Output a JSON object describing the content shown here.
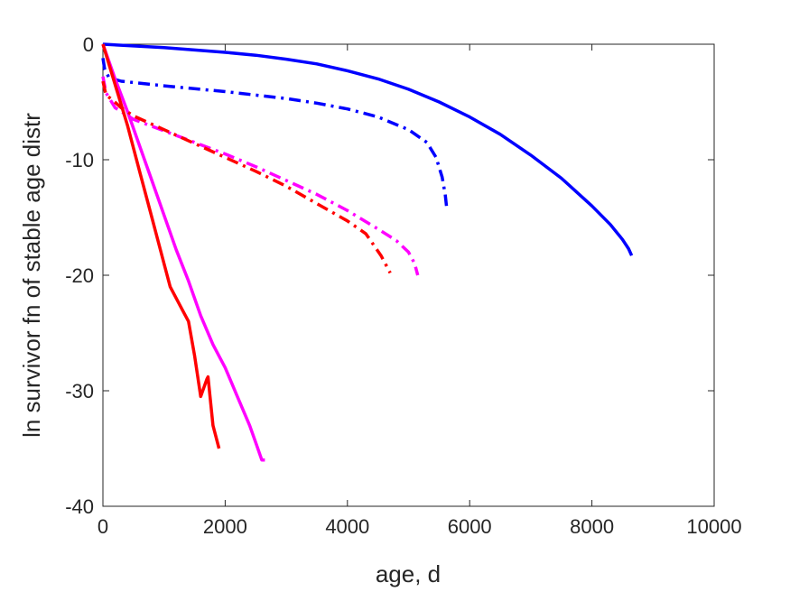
{
  "chart_data": {
    "type": "line",
    "title": "",
    "xlabel": "age, d",
    "ylabel": "ln survivor fn of stable age distr",
    "xlim": [
      0,
      10000
    ],
    "ylim": [
      -40,
      0
    ],
    "xticks": [
      0,
      2000,
      4000,
      6000,
      8000,
      10000
    ],
    "yticks": [
      0,
      -10,
      -20,
      -30,
      -40
    ],
    "xtick_labels": [
      "0",
      "2000",
      "4000",
      "6000",
      "8000",
      "10000"
    ],
    "ytick_labels": [
      "0",
      "-10",
      "-20",
      "-30",
      "-40"
    ],
    "grid": false,
    "legend": "none",
    "series": [
      {
        "color": "#0000ff",
        "style": "solid",
        "x": [
          0,
          500,
          1000,
          1500,
          2000,
          2500,
          3000,
          3500,
          4000,
          4500,
          5000,
          5500,
          6000,
          6500,
          7000,
          7500,
          8000,
          8300,
          8500,
          8600,
          8650
        ],
        "y": [
          0,
          -0.15,
          -0.3,
          -0.5,
          -0.7,
          -0.95,
          -1.3,
          -1.7,
          -2.3,
          -3.0,
          -3.9,
          -5.0,
          -6.3,
          -7.8,
          -9.6,
          -11.6,
          -14.0,
          -15.6,
          -16.9,
          -17.7,
          -18.3
        ]
      },
      {
        "color": "#0000ff",
        "style": "dashdot",
        "x": [
          0,
          30,
          100,
          300,
          1000,
          2000,
          3000,
          3500,
          4000,
          4500,
          5000,
          5300,
          5450,
          5550,
          5600,
          5620
        ],
        "y": [
          -1.2,
          -2.2,
          -2.9,
          -3.2,
          -3.6,
          -4.1,
          -4.7,
          -5.1,
          -5.6,
          -6.3,
          -7.4,
          -8.5,
          -9.8,
          -11.5,
          -13.0,
          -14.0
        ]
      },
      {
        "color": "#ff00ff",
        "style": "solid",
        "x": [
          0,
          200,
          400,
          600,
          800,
          1000,
          1200,
          1400,
          1600,
          1800,
          2000,
          2200,
          2400,
          2500,
          2600,
          2650
        ],
        "y": [
          0,
          -3.0,
          -5.8,
          -8.8,
          -11.8,
          -14.8,
          -17.8,
          -20.5,
          -23.5,
          -26.0,
          -28.0,
          -30.5,
          -33.0,
          -34.5,
          -36.0,
          -36.0
        ]
      },
      {
        "color": "#ff00ff",
        "style": "dashdot",
        "x": [
          0,
          50,
          200,
          500,
          1000,
          1500,
          2000,
          2500,
          3000,
          3500,
          4000,
          4500,
          4800,
          5000,
          5100,
          5150
        ],
        "y": [
          -2.8,
          -4.2,
          -5.5,
          -6.5,
          -7.5,
          -8.5,
          -9.5,
          -10.6,
          -11.8,
          -13.0,
          -14.4,
          -16.0,
          -17.0,
          -18.0,
          -19.0,
          -20.0
        ]
      },
      {
        "color": "#ff0000",
        "style": "solid",
        "x": [
          0,
          200,
          400,
          600,
          800,
          1000,
          1100,
          1300,
          1400,
          1500,
          1600,
          1700,
          1720,
          1800,
          1900
        ],
        "y": [
          0,
          -3.5,
          -7.0,
          -11.0,
          -15.0,
          -19.0,
          -21.0,
          -23.0,
          -24.0,
          -27.0,
          -30.5,
          -29.0,
          -28.8,
          -33.0,
          -35.0
        ]
      },
      {
        "color": "#ff0000",
        "style": "dashdot",
        "x": [
          0,
          50,
          150,
          300,
          500,
          1000,
          1500,
          2000,
          2500,
          3000,
          3500,
          4000,
          4300,
          4550,
          4700
        ],
        "y": [
          -3.2,
          -4.4,
          -4.8,
          -5.5,
          -6.2,
          -7.4,
          -8.6,
          -9.8,
          -11.0,
          -12.3,
          -13.8,
          -15.3,
          -16.4,
          -18.3,
          -19.8
        ]
      }
    ]
  }
}
